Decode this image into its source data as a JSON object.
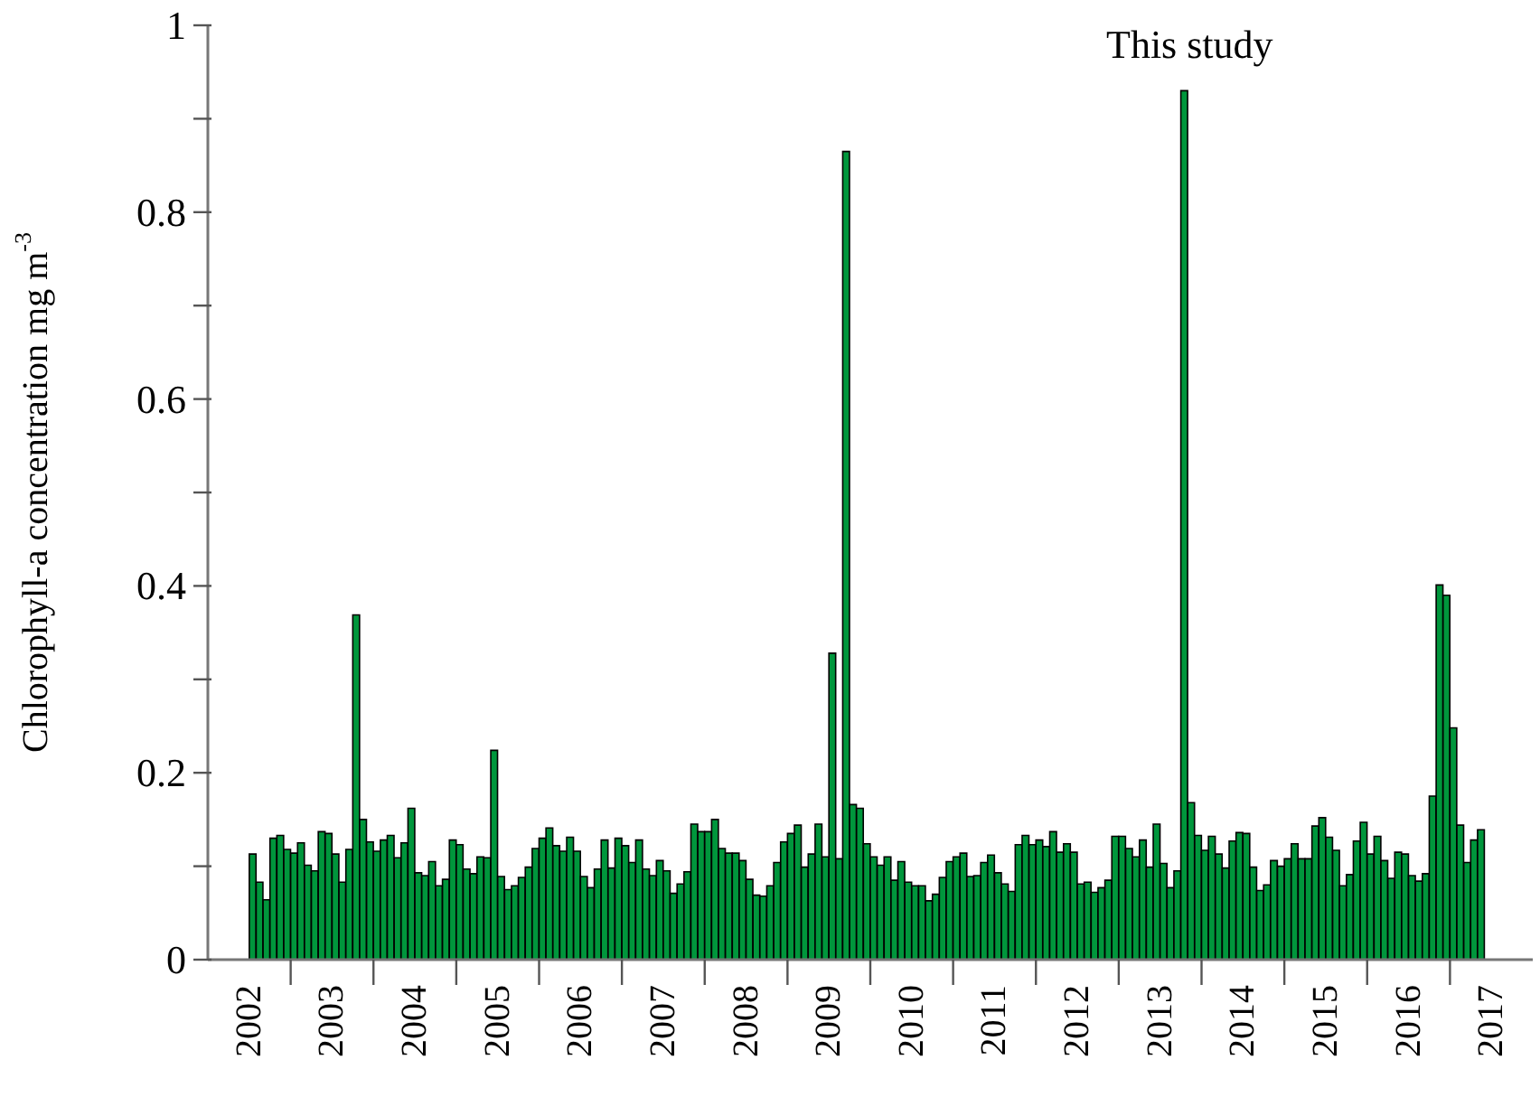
{
  "chart_data": {
    "type": "bar",
    "ylabel": "Chlorophyll-a concentration mg m$^{-3}$",
    "color": "#00963c",
    "annotations": [
      "This study"
    ],
    "xlim": [
      "2002-01",
      "2018-01"
    ],
    "xticks": [
      {
        "value": "2002-07",
        "label": "2002"
      },
      {
        "value": "2003-01",
        "label": null
      },
      {
        "value": "2003-07",
        "label": "2003"
      },
      {
        "value": "2004-01",
        "label": null
      },
      {
        "value": "2004-07",
        "label": "2004"
      },
      {
        "value": "2005-01",
        "label": null
      },
      {
        "value": "2005-07",
        "label": "2005"
      },
      {
        "value": "2006-01",
        "label": null
      },
      {
        "value": "2006-07",
        "label": "2006"
      },
      {
        "value": "2007-01",
        "label": null
      },
      {
        "value": "2007-07",
        "label": "2007"
      },
      {
        "value": "2008-01",
        "label": null
      },
      {
        "value": "2008-07",
        "label": "2008"
      },
      {
        "value": "2009-01",
        "label": null
      },
      {
        "value": "2009-07",
        "label": "2009"
      },
      {
        "value": "2010-01",
        "label": null
      },
      {
        "value": "2010-07",
        "label": "2010"
      },
      {
        "value": "2011-01",
        "label": null
      },
      {
        "value": "2011-07",
        "label": "2011"
      },
      {
        "value": "2012-01",
        "label": null
      },
      {
        "value": "2012-07",
        "label": "2012"
      },
      {
        "value": "2013-01",
        "label": null
      },
      {
        "value": "2013-07",
        "label": "2013"
      },
      {
        "value": "2014-01",
        "label": null
      },
      {
        "value": "2014-07",
        "label": "2014"
      },
      {
        "value": "2015-01",
        "label": null
      },
      {
        "value": "2015-07",
        "label": "2015"
      },
      {
        "value": "2016-01",
        "label": null
      },
      {
        "value": "2016-07",
        "label": "2016"
      },
      {
        "value": "2017-01",
        "label": null
      },
      {
        "value": "2017-07",
        "label": "2017"
      }
    ],
    "ylim": [
      0,
      1
    ],
    "yticks": [
      0,
      {
        "value": 0.1,
        "label": null
      },
      0.2,
      {
        "value": 0.3,
        "label": null
      },
      0.4,
      {
        "value": 0.5,
        "label": null
      },
      0.6,
      {
        "value": 0.7,
        "label": null
      },
      0.8,
      {
        "value": 0.9,
        "label": null
      },
      1
    ],
    "x": [
      "2002-07",
      "2002-08",
      "2002-09",
      "2002-10",
      "2002-11",
      "2002-12",
      "2003-01",
      "2003-02",
      "2003-03",
      "2003-04",
      "2003-05",
      "2003-06",
      "2003-07",
      "2003-08",
      "2003-09",
      "2003-10",
      "2003-11",
      "2003-12",
      "2004-01",
      "2004-02",
      "2004-03",
      "2004-04",
      "2004-05",
      "2004-06",
      "2004-07",
      "2004-08",
      "2004-09",
      "2004-10",
      "2004-11",
      "2004-12",
      "2005-01",
      "2005-02",
      "2005-03",
      "2005-04",
      "2005-05",
      "2005-06",
      "2005-07",
      "2005-08",
      "2005-09",
      "2005-10",
      "2005-11",
      "2005-12",
      "2006-01",
      "2006-02",
      "2006-03",
      "2006-04",
      "2006-05",
      "2006-06",
      "2006-07",
      "2006-08",
      "2006-09",
      "2006-10",
      "2006-11",
      "2006-12",
      "2007-01",
      "2007-02",
      "2007-03",
      "2007-04",
      "2007-05",
      "2007-06",
      "2007-07",
      "2007-08",
      "2007-09",
      "2007-10",
      "2007-11",
      "2007-12",
      "2008-01",
      "2008-02",
      "2008-03",
      "2008-04",
      "2008-05",
      "2008-06",
      "2008-07",
      "2008-08",
      "2008-09",
      "2008-10",
      "2008-11",
      "2008-12",
      "2009-01",
      "2009-02",
      "2009-03",
      "2009-04",
      "2009-05",
      "2009-06",
      "2009-07",
      "2009-08",
      "2009-09",
      "2009-10",
      "2009-11",
      "2009-12",
      "2010-01",
      "2010-02",
      "2010-03",
      "2010-04",
      "2010-05",
      "2010-06",
      "2010-07",
      "2010-08",
      "2010-09",
      "2010-10",
      "2010-11",
      "2010-12",
      "2011-01",
      "2011-02",
      "2011-03",
      "2011-04",
      "2011-05",
      "2011-06",
      "2011-07",
      "2011-08",
      "2011-09",
      "2011-10",
      "2011-11",
      "2011-12",
      "2012-01",
      "2012-02",
      "2012-03",
      "2012-04",
      "2012-05",
      "2012-06",
      "2012-07",
      "2012-08",
      "2012-09",
      "2012-10",
      "2012-11",
      "2012-12",
      "2013-01",
      "2013-02",
      "2013-03",
      "2013-04",
      "2013-05",
      "2013-06",
      "2013-07",
      "2013-08",
      "2013-09",
      "2013-10",
      "2013-11",
      "2013-12",
      "2014-01",
      "2014-02",
      "2014-03",
      "2014-04",
      "2014-05",
      "2014-06",
      "2014-07",
      "2014-08",
      "2014-09",
      "2014-10",
      "2014-11",
      "2014-12",
      "2015-01",
      "2015-02",
      "2015-03",
      "2015-04",
      "2015-05",
      "2015-06",
      "2015-07",
      "2015-08",
      "2015-09",
      "2015-10",
      "2015-11",
      "2015-12",
      "2016-01",
      "2016-02",
      "2016-03",
      "2016-04",
      "2016-05",
      "2016-06",
      "2016-07",
      "2016-08",
      "2016-09",
      "2016-10",
      "2016-11",
      "2016-12",
      "2017-01",
      "2017-02",
      "2017-03",
      "2017-04",
      "2017-05"
    ],
    "values": [
      0.113,
      0.083,
      0.064,
      0.13,
      0.133,
      0.118,
      0.114,
      0.125,
      0.101,
      0.095,
      0.137,
      0.135,
      0.113,
      0.083,
      0.118,
      0.369,
      0.15,
      0.126,
      0.116,
      0.128,
      0.133,
      0.109,
      0.125,
      0.162,
      0.093,
      0.09,
      0.105,
      0.079,
      0.086,
      0.128,
      0.123,
      0.097,
      0.092,
      0.11,
      0.109,
      0.224,
      0.089,
      0.075,
      0.079,
      0.088,
      0.099,
      0.119,
      0.13,
      0.141,
      0.122,
      0.116,
      0.131,
      0.116,
      0.089,
      0.077,
      0.097,
      0.128,
      0.098,
      0.13,
      0.122,
      0.104,
      0.128,
      0.097,
      0.09,
      0.106,
      0.095,
      0.071,
      0.081,
      0.094,
      0.145,
      0.137,
      0.137,
      0.15,
      0.119,
      0.114,
      0.114,
      0.106,
      0.086,
      0.069,
      0.068,
      0.079,
      0.104,
      0.126,
      0.135,
      0.144,
      0.099,
      0.113,
      0.145,
      0.11,
      0.328,
      0.108,
      0.865,
      0.166,
      0.162,
      0.124,
      0.11,
      0.101,
      0.11,
      0.085,
      0.105,
      0.083,
      0.079,
      0.079,
      0.063,
      0.07,
      0.088,
      0.105,
      0.11,
      0.114,
      0.089,
      0.09,
      0.104,
      0.112,
      0.093,
      0.081,
      0.073,
      0.123,
      0.133,
      0.123,
      0.128,
      0.121,
      0.137,
      0.115,
      0.124,
      0.115,
      0.081,
      0.083,
      0.072,
      0.077,
      0.085,
      0.132,
      0.132,
      0.119,
      0.11,
      0.128,
      0.099,
      0.145,
      0.103,
      0.077,
      0.095,
      0.93,
      0.168,
      0.133,
      0.117,
      0.132,
      0.113,
      0.098,
      0.127,
      0.136,
      0.135,
      0.099,
      0.074,
      0.08,
      0.106,
      0.1,
      0.108,
      0.124,
      0.108,
      0.108,
      0.143,
      0.152,
      0.131,
      0.117,
      0.079,
      0.091,
      0.127,
      0.147,
      0.113,
      0.132,
      0.106,
      0.087,
      0.115,
      0.113,
      0.09,
      0.084,
      0.092,
      0.175,
      0.401,
      0.39,
      0.248,
      0.144,
      0.104,
      0.128,
      0.139
    ]
  }
}
